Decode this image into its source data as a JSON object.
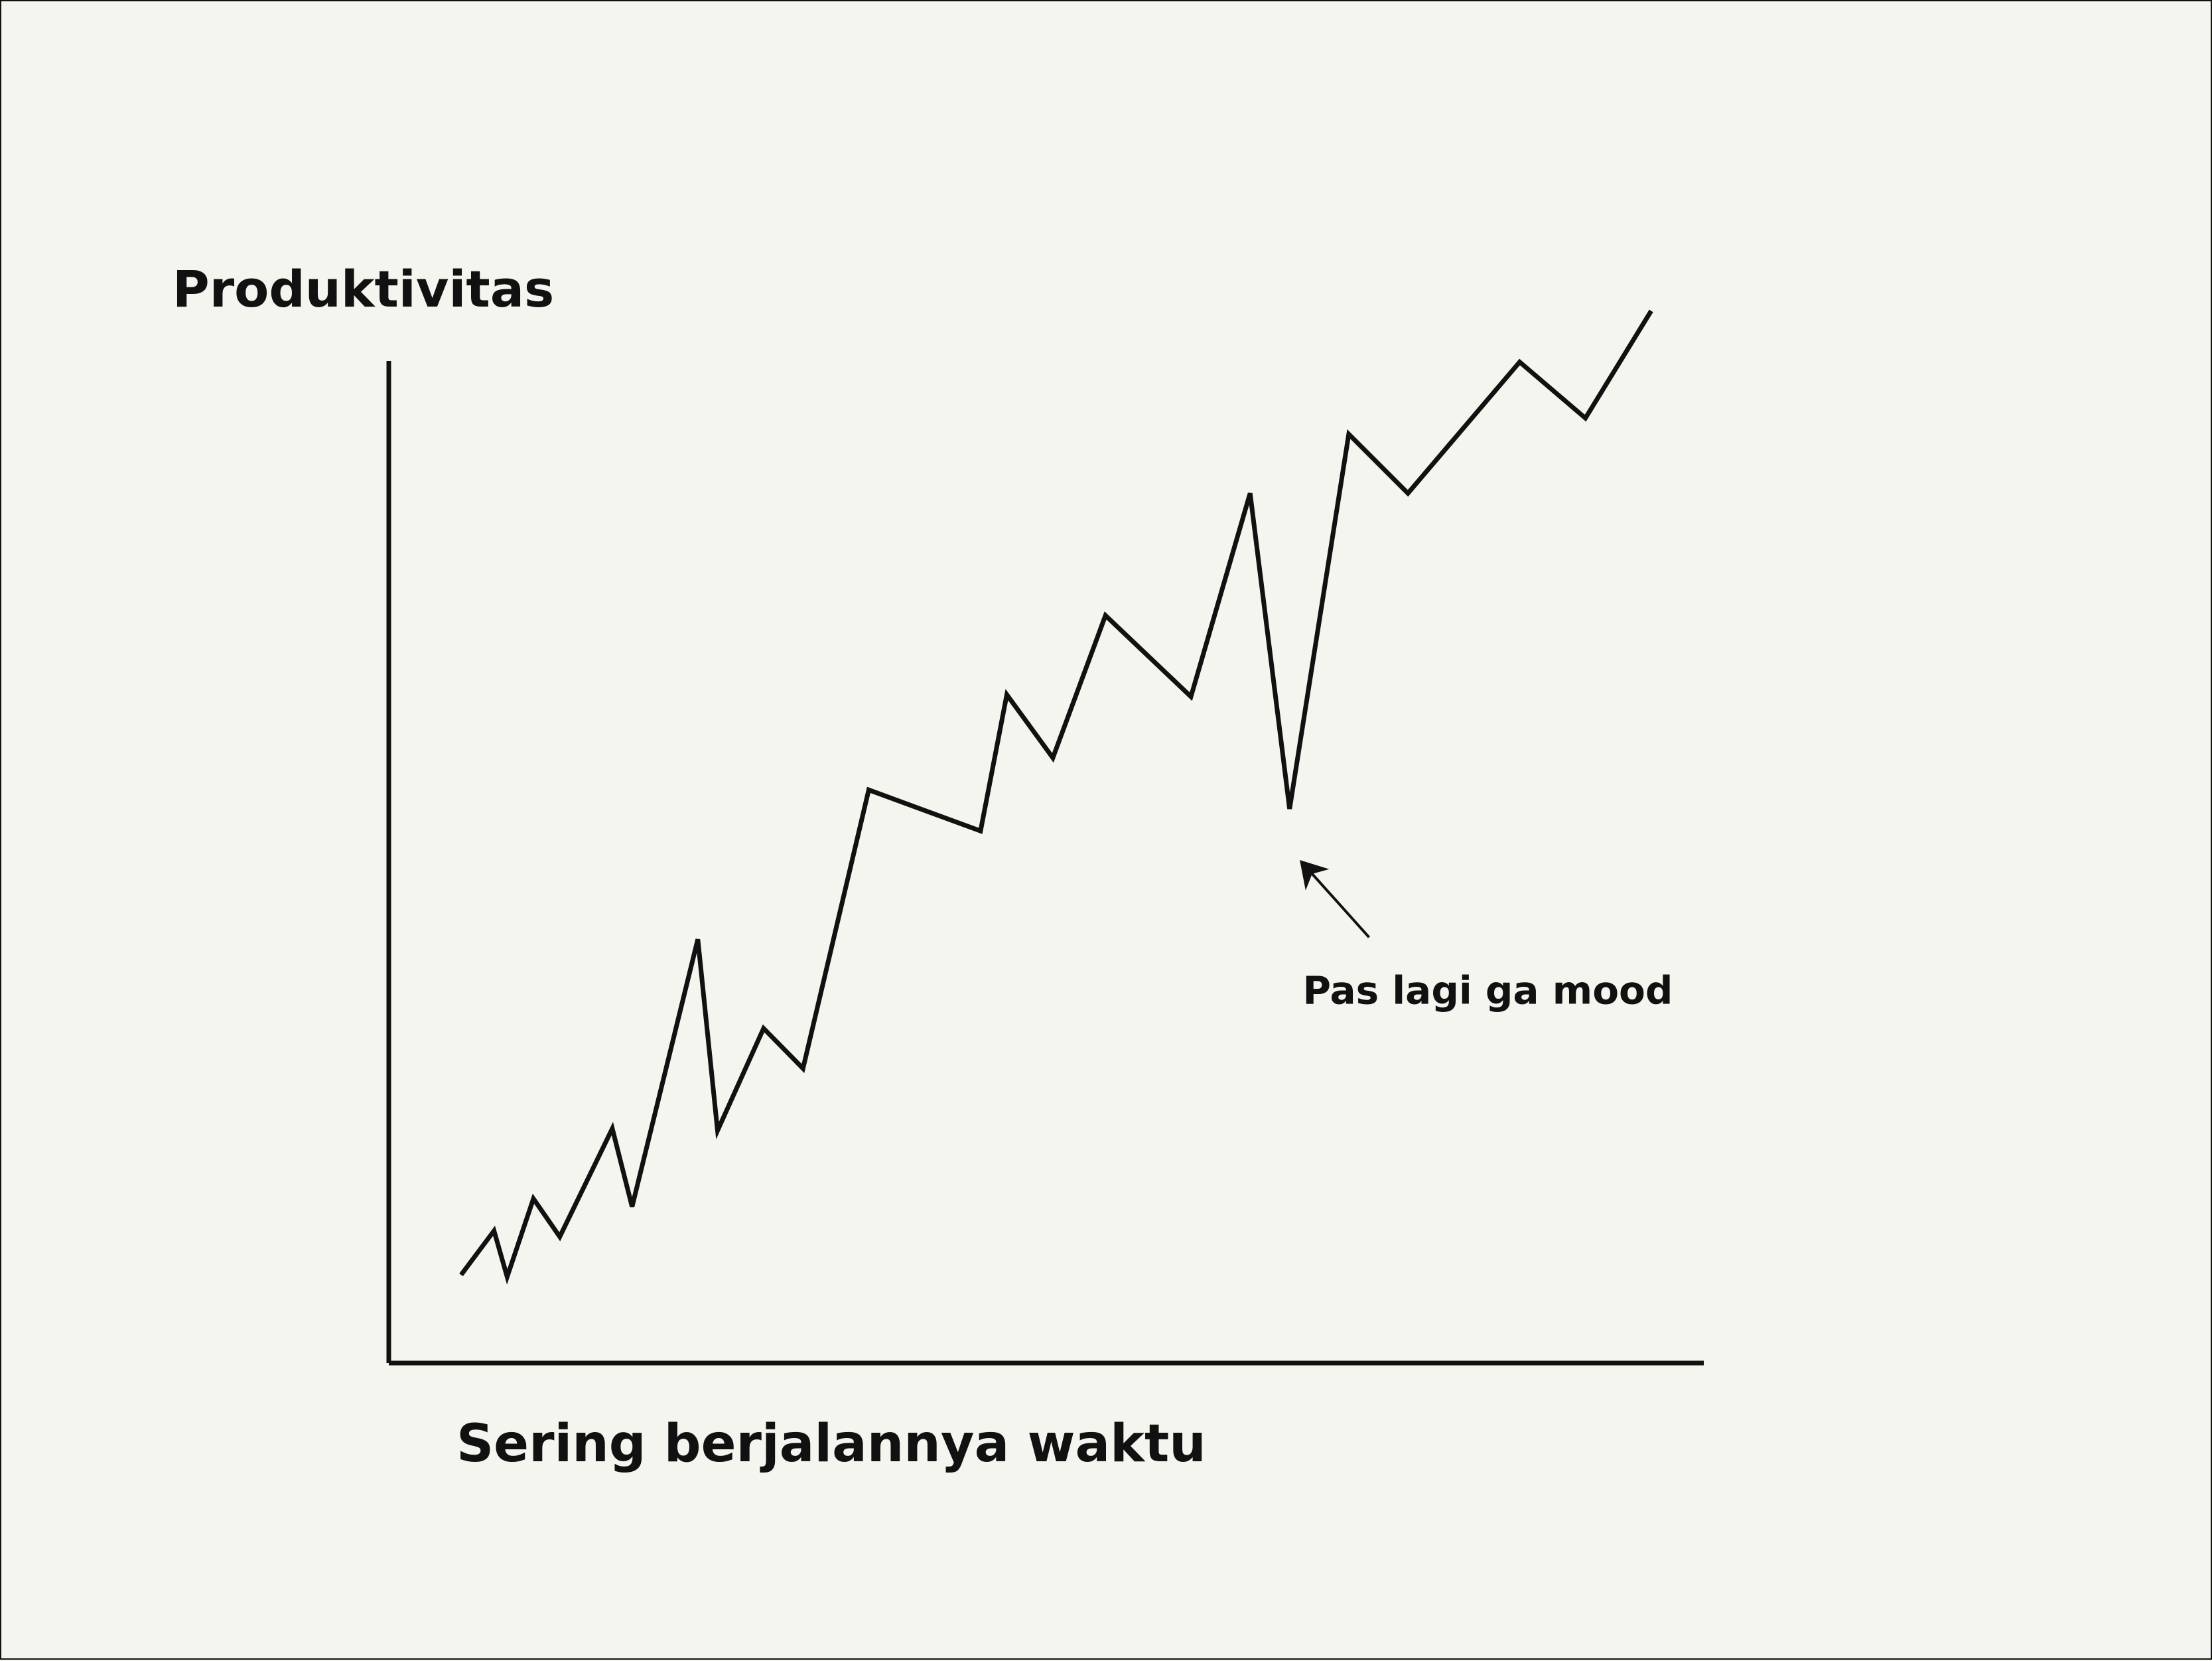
{
  "chart_data": {
    "type": "line",
    "title": "",
    "ylabel": "Produktivitas",
    "xlabel": "Sering berjalannya waktu",
    "xlim": [
      0,
      20
    ],
    "ylim": [
      0,
      100
    ],
    "grid": false,
    "legend": "none",
    "series": [
      {
        "values": [
          {
            "x": 1.1,
            "y": 8.8
          },
          {
            "x": 1.6,
            "y": 13.2
          },
          {
            "x": 1.8,
            "y": 8.6
          },
          {
            "x": 2.2,
            "y": 16.4
          },
          {
            "x": 2.6,
            "y": 12.6
          },
          {
            "x": 3.4,
            "y": 23.4
          },
          {
            "x": 3.7,
            "y": 15.6
          },
          {
            "x": 4.7,
            "y": 42.3
          },
          {
            "x": 5.0,
            "y": 23.2
          },
          {
            "x": 5.7,
            "y": 33.4
          },
          {
            "x": 6.3,
            "y": 29.4
          },
          {
            "x": 7.3,
            "y": 57.2
          },
          {
            "x": 9.0,
            "y": 53.1
          },
          {
            "x": 9.4,
            "y": 66.7
          },
          {
            "x": 10.1,
            "y": 60.4
          },
          {
            "x": 10.9,
            "y": 74.6
          },
          {
            "x": 12.2,
            "y": 66.5
          },
          {
            "x": 13.1,
            "y": 86.8
          },
          {
            "x": 13.7,
            "y": 55.3
          },
          {
            "x": 14.6,
            "y": 92.7
          },
          {
            "x": 15.5,
            "y": 86.8
          },
          {
            "x": 17.2,
            "y": 99.9
          },
          {
            "x": 18.2,
            "y": 94.3
          },
          {
            "x": 19.2,
            "y": 105.0
          }
        ]
      }
    ],
    "annotations": [
      {
        "text": "Pas lagi ga mood",
        "x": 13.9,
        "y": 45.8,
        "arrow_to": {
          "x": 13.7,
          "y": 55.3
        }
      }
    ],
    "colors": {
      "line": "#111111",
      "axis": "#111111",
      "background": "#f5f5ef"
    }
  }
}
